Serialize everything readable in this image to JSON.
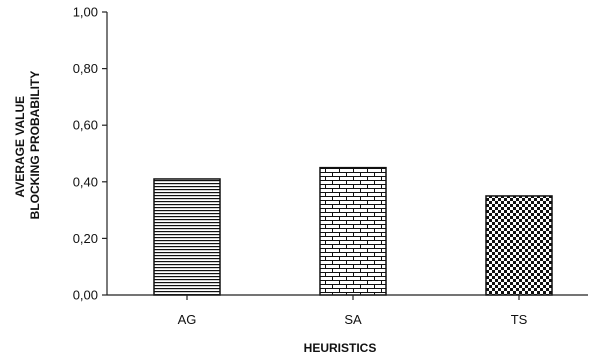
{
  "chart_data": {
    "type": "bar",
    "title": "",
    "categories": [
      "AG",
      "SA",
      "TS"
    ],
    "values": [
      0.41,
      0.45,
      0.35
    ],
    "xlabel": "HEURISTICS",
    "ylabel_lines": [
      "AVERAGE VALUE",
      "BLOCKING PROBABILITY"
    ],
    "ylim": [
      0,
      1
    ],
    "yticks": [
      0,
      0.2,
      0.4,
      0.6,
      0.8,
      1.0
    ],
    "ytick_labels": [
      "0,00",
      "0,20",
      "0,40",
      "0,60",
      "0,80",
      "1,00"
    ],
    "bar_patterns": [
      "horizontal-stripes",
      "brick",
      "checkerboard"
    ],
    "grid": false,
    "legend": "none",
    "colors": {
      "axis": "#222222",
      "pattern_ink": "#111111",
      "background": "#ffffff"
    }
  }
}
